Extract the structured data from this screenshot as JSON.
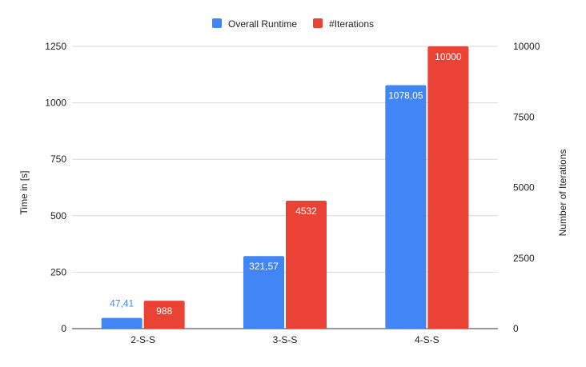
{
  "chart_data": {
    "type": "bar",
    "categories": [
      "2-S-S",
      "3-S-S",
      "4-S-S"
    ],
    "series": [
      {
        "name": "Overall Runtime",
        "axis": "left",
        "color": "#4285f4",
        "values": [
          47.41,
          321.57,
          1078.05
        ],
        "labels": [
          "47,41",
          "321,57",
          "1078,05"
        ]
      },
      {
        "name": "#Iterations",
        "axis": "right",
        "color": "#ea4335",
        "values": [
          988,
          4532,
          10000
        ],
        "labels": [
          "988",
          "4532",
          "10000"
        ]
      }
    ],
    "ylabel": "Time in [s]",
    "y2label": "Number of Iterations",
    "ylim": [
      0,
      1250
    ],
    "y2lim": [
      0,
      10000
    ],
    "yticks": [
      "0",
      "250",
      "500",
      "750",
      "1000",
      "1250"
    ],
    "y2ticks": [
      "0",
      "2500",
      "5000",
      "7500",
      "10000"
    ],
    "legend": "top-center",
    "grid": true
  }
}
